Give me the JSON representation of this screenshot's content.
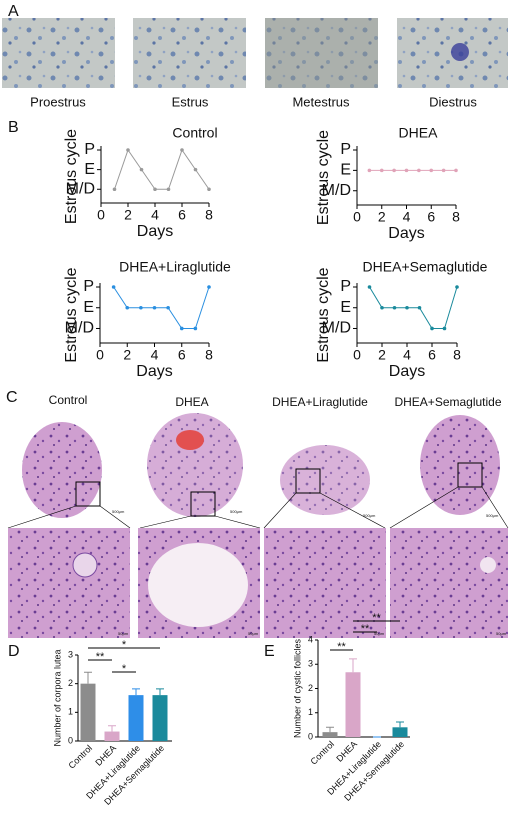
{
  "panel_letters": [
    "A",
    "B",
    "C",
    "D",
    "E"
  ],
  "estrous_stages": [
    "Proestrus",
    "Estrus",
    "Metestrus",
    "Diestrus"
  ],
  "groups": [
    "Control",
    "DHEA",
    "DHEA+Liraglutide",
    "DHEA+Semaglutide"
  ],
  "scale_bars": [
    "500μm",
    "50μm"
  ],
  "chart_data": [
    {
      "type": "line",
      "title": "Control",
      "xlabel": "Days",
      "ylabel": "Estrous cycle",
      "x": [
        1,
        2,
        3,
        4,
        5,
        6,
        7,
        8
      ],
      "values": [
        1,
        3,
        2,
        1,
        1,
        3,
        2,
        1
      ],
      "color": "#9a9a9a",
      "xlim": [
        0,
        8
      ],
      "xticks": [
        0,
        2,
        4,
        6,
        8
      ],
      "ylim": [
        0.3,
        3
      ],
      "yticks": [
        {
          "value": 1,
          "label": "M/D"
        },
        {
          "value": 2,
          "label": "E"
        },
        {
          "value": 3,
          "label": "P"
        }
      ]
    },
    {
      "type": "line",
      "title": "DHEA",
      "xlabel": "Days",
      "ylabel": "Estrous cycle",
      "x": [
        1,
        2,
        3,
        4,
        5,
        6,
        7,
        8
      ],
      "values": [
        2,
        2,
        2,
        2,
        2,
        2,
        2,
        2
      ],
      "color": "#e0a3b8",
      "xlim": [
        0,
        8
      ],
      "xticks": [
        0,
        2,
        4,
        6,
        8
      ],
      "ylim": [
        0.3,
        3
      ],
      "yticks": [
        {
          "value": 1,
          "label": "M/D"
        },
        {
          "value": 2,
          "label": "E"
        },
        {
          "value": 3,
          "label": "P"
        }
      ]
    },
    {
      "type": "line",
      "title": "DHEA+Liraglutide",
      "xlabel": "Days",
      "ylabel": "Estrous cycle",
      "x": [
        1,
        2,
        3,
        4,
        5,
        6,
        7,
        8
      ],
      "values": [
        3,
        2,
        2,
        2,
        2,
        1,
        1,
        3
      ],
      "color": "#2a8fe0",
      "xlim": [
        0,
        8
      ],
      "xticks": [
        0,
        2,
        4,
        6,
        8
      ],
      "ylim": [
        0.3,
        3
      ],
      "yticks": [
        {
          "value": 1,
          "label": "M/D"
        },
        {
          "value": 2,
          "label": "E"
        },
        {
          "value": 3,
          "label": "P"
        }
      ]
    },
    {
      "type": "line",
      "title": "DHEA+Semaglutide",
      "xlabel": "Days",
      "ylabel": "Estrous cycle",
      "x": [
        1,
        2,
        3,
        4,
        5,
        6,
        7,
        8
      ],
      "values": [
        3,
        2,
        2,
        2,
        2,
        1,
        1,
        3
      ],
      "color": "#1a8a9c",
      "xlim": [
        0,
        8
      ],
      "xticks": [
        0,
        2,
        4,
        6,
        8
      ],
      "ylim": [
        0.3,
        3
      ],
      "yticks": [
        {
          "value": 1,
          "label": "M/D"
        },
        {
          "value": 2,
          "label": "E"
        },
        {
          "value": 3,
          "label": "P"
        }
      ]
    },
    {
      "type": "bar",
      "ylabel": "Number of corpora lutea",
      "categories": [
        "Control",
        "DHEA",
        "DHEA+Liraglutide",
        "DHEA+Semaglutide"
      ],
      "values": [
        2,
        0.33,
        1.6,
        1.6
      ],
      "errors": [
        0.4,
        0.2,
        0.22,
        0.22
      ],
      "colors": [
        "#8c8c8c",
        "#d9a6c8",
        "#2e8ee8",
        "#1a8a9c"
      ],
      "ylim": [
        0,
        3
      ],
      "yticks": [
        0,
        1,
        2,
        3
      ],
      "annotations": [
        "**",
        "*",
        "*"
      ]
    },
    {
      "type": "bar",
      "ylabel": "Number of cystic follicles",
      "categories": [
        "Control",
        "DHEA",
        "DHEA+Liraglutide",
        "DHEA+Semaglutide"
      ],
      "values": [
        0.2,
        2.67,
        0,
        0.4
      ],
      "errors": [
        0.2,
        0.55,
        0,
        0.22
      ],
      "colors": [
        "#8c8c8c",
        "#d9a6c8",
        "#2e8ee8",
        "#1a8a9c"
      ],
      "ylim": [
        0,
        4
      ],
      "yticks": [
        0,
        1,
        2,
        3,
        4
      ],
      "annotations": [
        "**",
        "**",
        "**"
      ]
    }
  ]
}
